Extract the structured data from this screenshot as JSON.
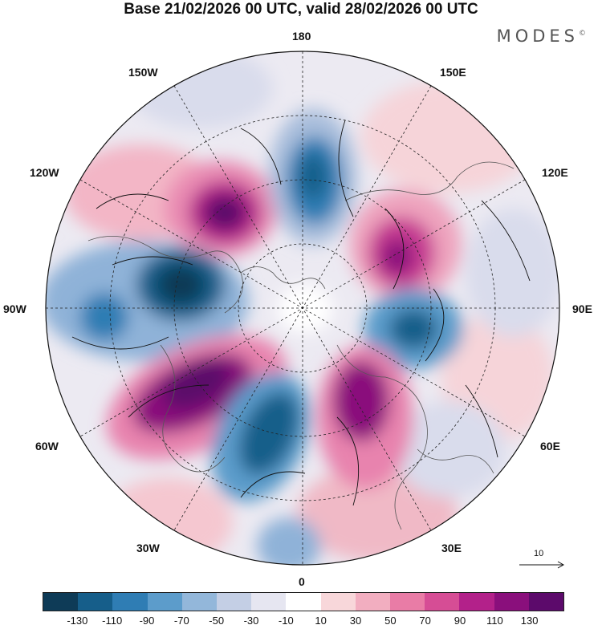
{
  "title": "Base 21/02/2026 00 UTC, valid 28/02/2026 00 UTC",
  "brand": "MODES",
  "brand_mark": "©",
  "longitudes": {
    "l180": "180",
    "l150w": "150W",
    "l150e": "150E",
    "l120w": "120W",
    "l120e": "120E",
    "l90w": "90W",
    "l90e": "90E",
    "l60w": "60W",
    "l60e": "60E",
    "l30w": "30W",
    "l30e": "30E",
    "l0": "0"
  },
  "reference_vector": "10",
  "colorbar": {
    "colors": [
      "#0e3b57",
      "#165e8a",
      "#2f7db4",
      "#5c9ccb",
      "#93b7da",
      "#c4cfe5",
      "#e6e6f1",
      "#ffffff",
      "#f8d7da",
      "#f2aec0",
      "#e97ca6",
      "#d64d95",
      "#b3218a",
      "#8a0f7c",
      "#5c0a6b"
    ],
    "ticks": [
      "-130",
      "-110",
      "-90",
      "-70",
      "-50",
      "-30",
      "-10",
      "10",
      "30",
      "50",
      "70",
      "90",
      "110",
      "130"
    ]
  },
  "colors": {
    "map_bg": "#f2f2f4",
    "ocean": "#f7f7f9",
    "coast": "#555555"
  }
}
